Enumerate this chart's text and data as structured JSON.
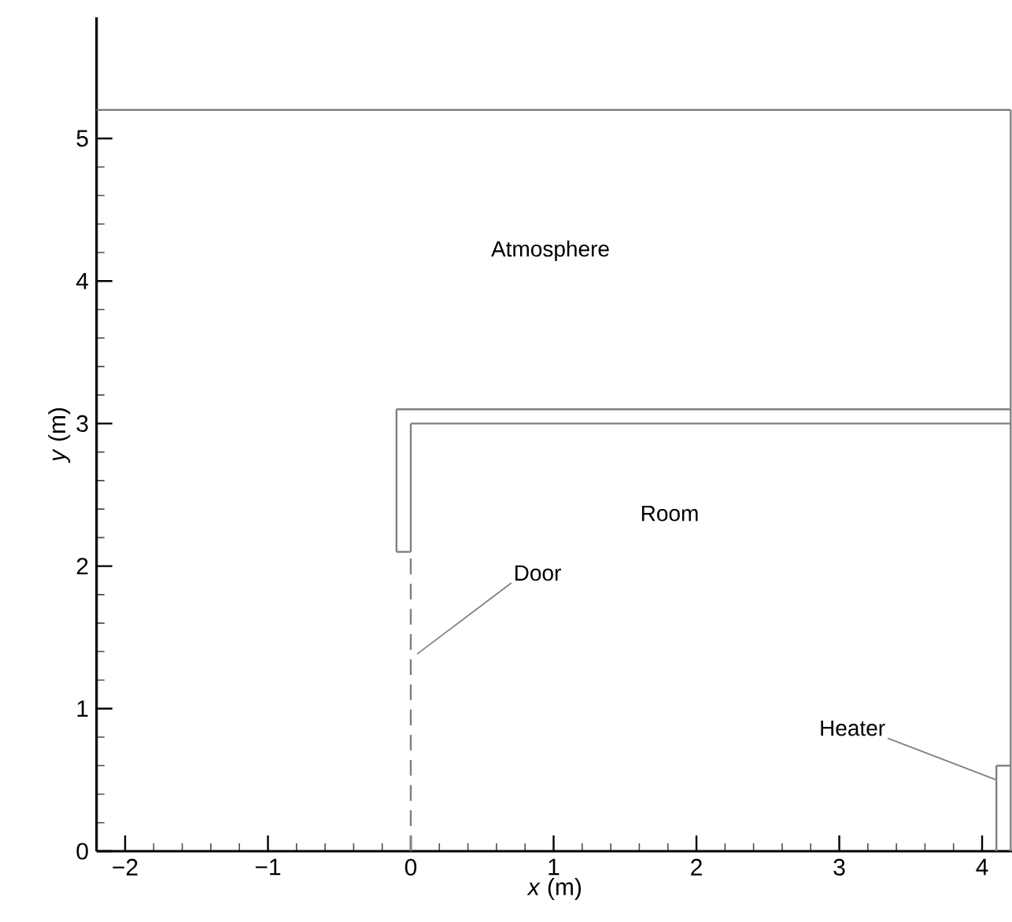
{
  "chart_data": {
    "type": "line",
    "xlabel": "*x* (m)",
    "ylabel": "*y* (m)",
    "xlim": [
      -2.2,
      4.22
    ],
    "ylim": [
      0,
      5.85
    ],
    "xticks": [
      {
        "value": -2,
        "label": "−2"
      },
      {
        "value": -1,
        "label": "−1"
      },
      0,
      1,
      2,
      3,
      4
    ],
    "yticks": [
      0,
      1,
      2,
      3,
      4,
      5
    ],
    "grid": false,
    "marker": "none",
    "series": [
      {
        "color": "#808080",
        "line_style": "solid",
        "x": [
          -2.2,
          4.2
        ],
        "values": [
          5.2,
          5.2
        ]
      },
      {
        "color": "#808080",
        "line_style": "solid",
        "x": [
          4.2,
          4.2
        ],
        "values": [
          0,
          5.2
        ]
      },
      {
        "color": "#808080",
        "line_style": "solid",
        "x": [
          -0.1,
          4.2
        ],
        "values": [
          3.1,
          3.1
        ]
      },
      {
        "color": "#808080",
        "line_style": "solid",
        "x": [
          0,
          4.2
        ],
        "values": [
          3.0,
          3.0
        ]
      },
      {
        "color": "#808080",
        "line_style": "solid",
        "x": [
          -0.1,
          -0.1
        ],
        "values": [
          2.1,
          3.1
        ]
      },
      {
        "color": "#808080",
        "line_style": "solid",
        "x": [
          0,
          0
        ],
        "values": [
          2.1,
          3.0
        ]
      },
      {
        "color": "#808080",
        "line_style": "solid",
        "x": [
          -0.1,
          0
        ],
        "values": [
          2.1,
          2.1
        ]
      },
      {
        "color": "#808080",
        "line_style": "dashed",
        "x": [
          0,
          0
        ],
        "values": [
          0,
          2.1
        ]
      },
      {
        "color": "#808080",
        "line_style": "solid",
        "x": [
          4.1,
          4.1
        ],
        "values": [
          0,
          0.6
        ]
      },
      {
        "color": "#808080",
        "line_style": "solid",
        "x": [
          4.1,
          4.2
        ],
        "values": [
          0.6,
          0.6
        ]
      }
    ],
    "annotations": [
      "Atmosphere",
      "Room",
      {
        "text": "Door",
        "x": 0,
        "y": 1.35
      },
      {
        "text": "Heater",
        "x": 4.1,
        "y": 0.5
      }
    ]
  }
}
